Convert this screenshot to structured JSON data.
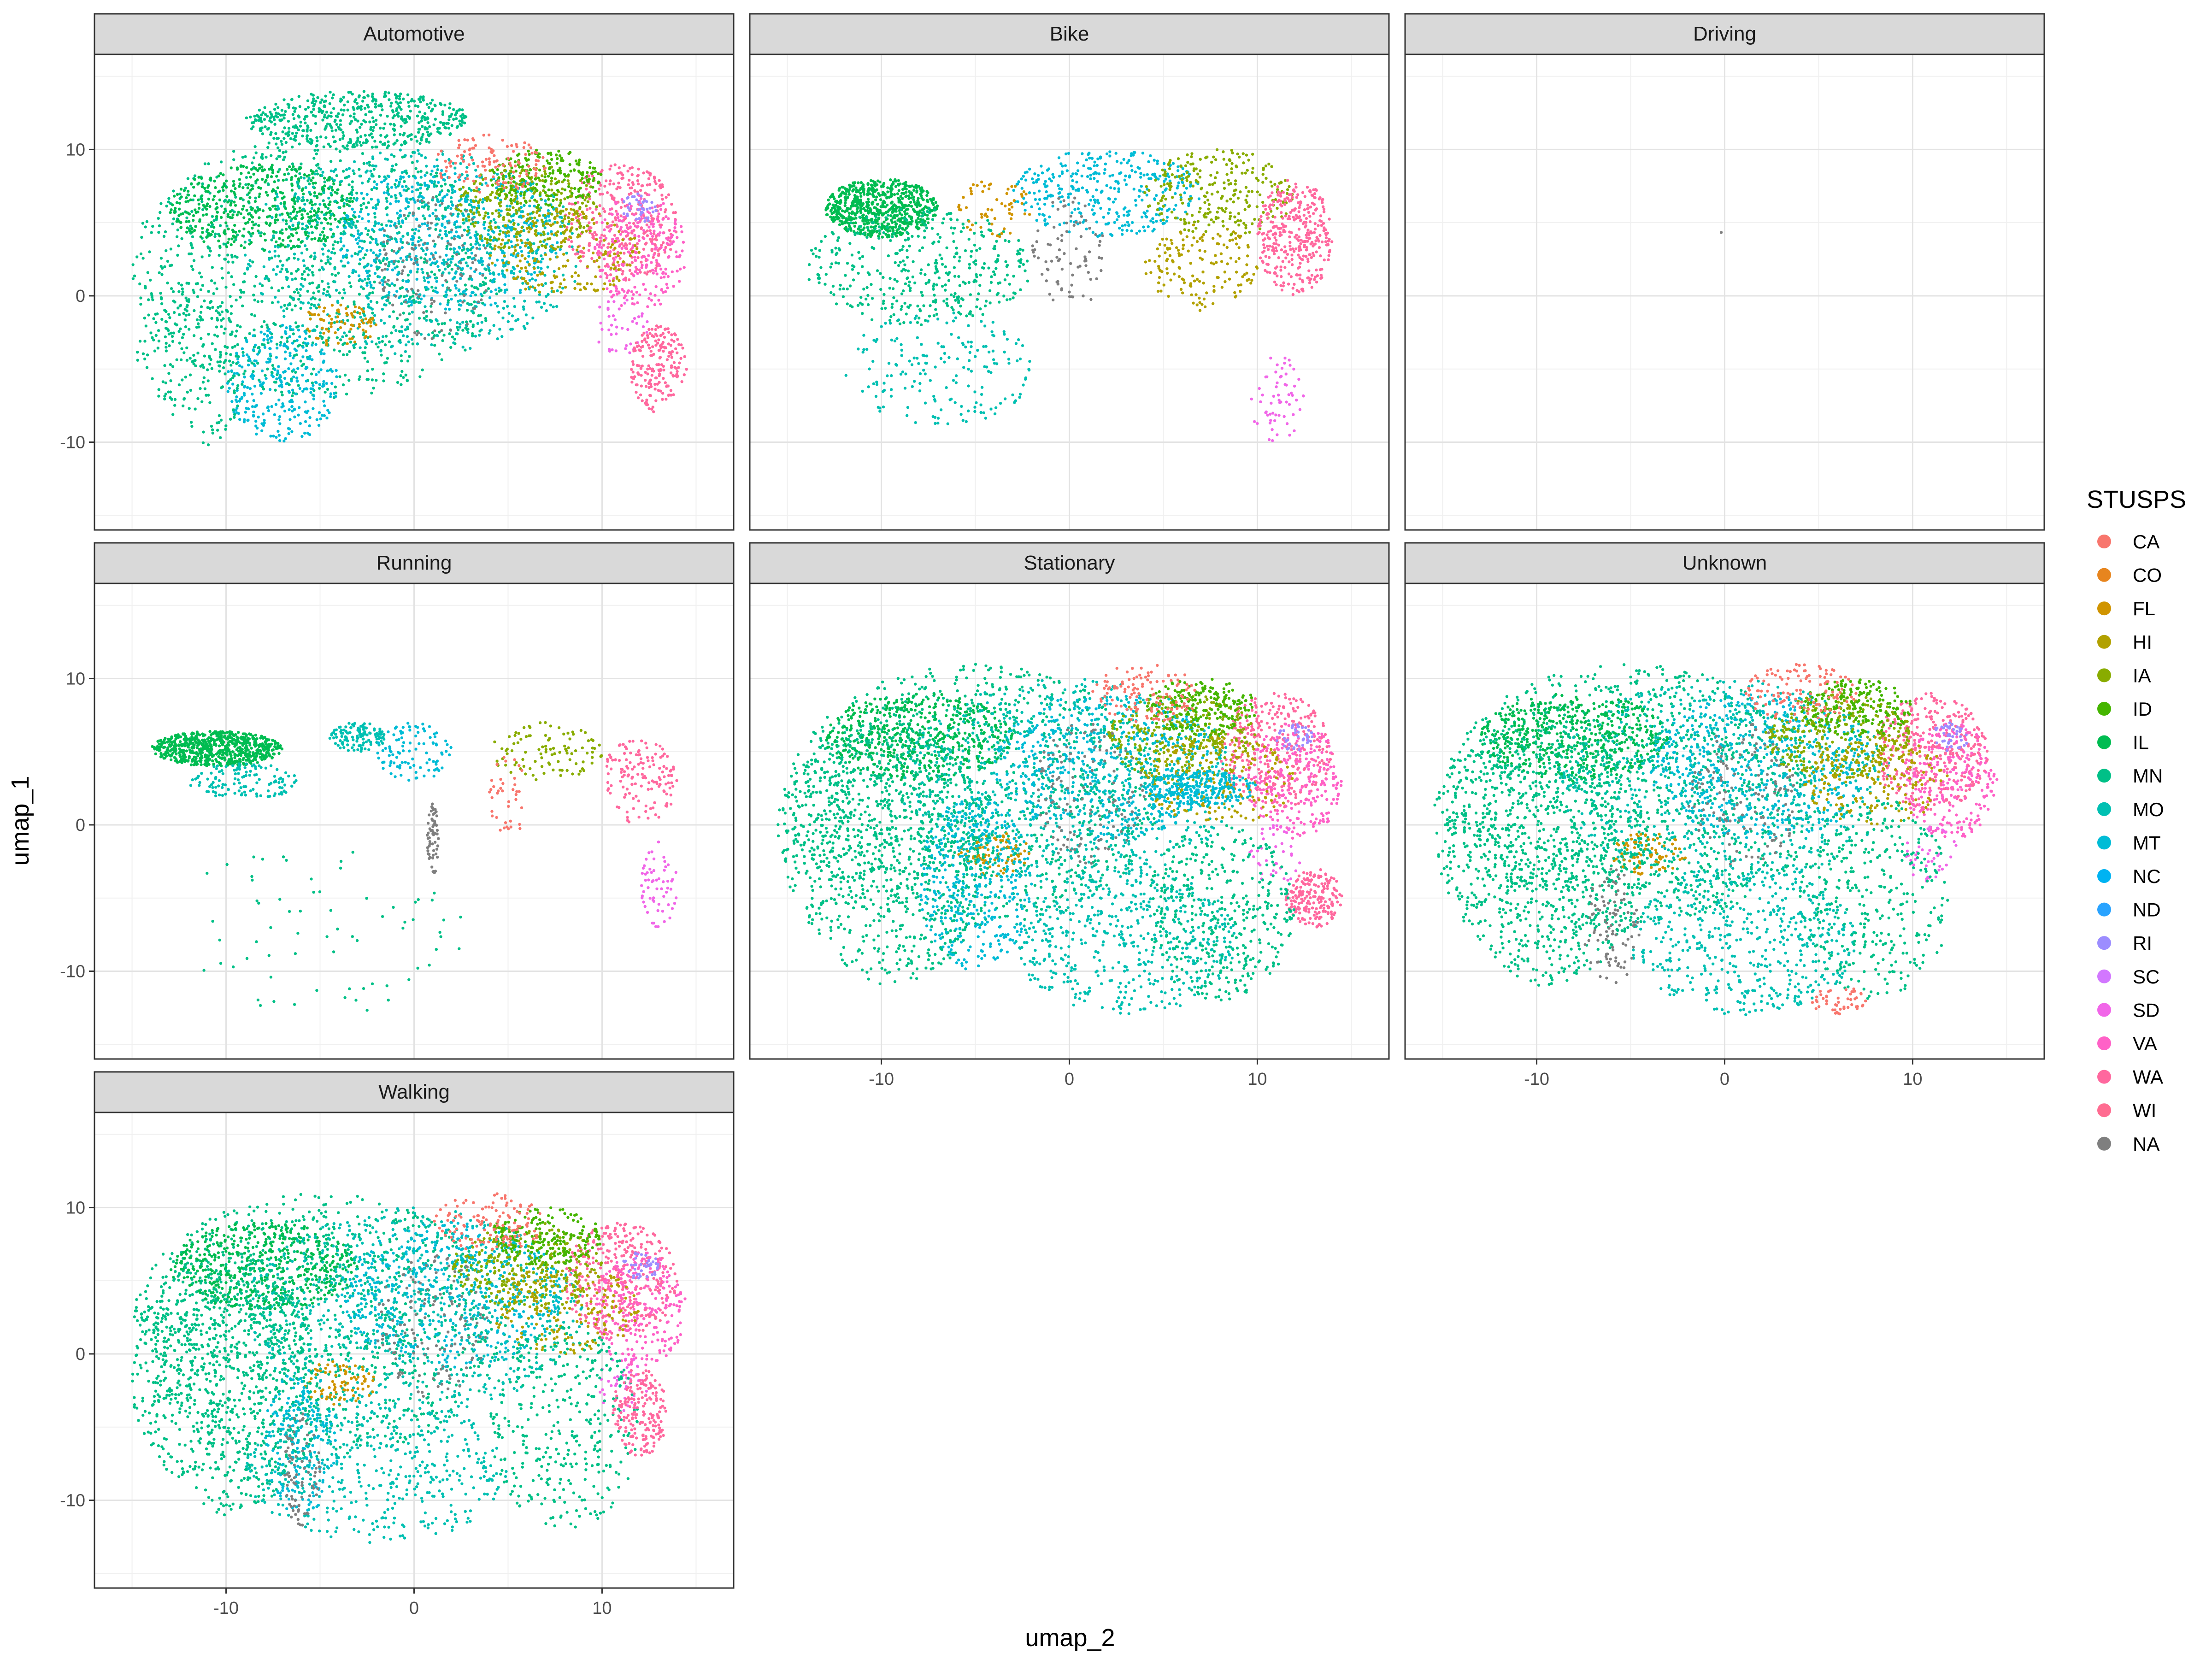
{
  "chart_data": {
    "type": "scatter",
    "xlabel": "umap_2",
    "ylabel": "umap_1",
    "xlim": [
      -17,
      17
    ],
    "ylim": [
      -16,
      16.5
    ],
    "x_ticks": [
      -10,
      0,
      10
    ],
    "y_ticks": [
      -10,
      0,
      10
    ],
    "x_tick_labels": [
      "-10",
      "0",
      "10"
    ],
    "y_tick_labels": [
      "-10",
      "0",
      "10"
    ],
    "grid": true,
    "facets": [
      "Automotive",
      "Bike",
      "Driving",
      "Running",
      "Stationary",
      "Unknown",
      "Walking"
    ],
    "facet_columns": 3,
    "legend": {
      "title": "STUSPS",
      "placement": "right",
      "items": [
        {
          "label": "CA",
          "color": "#F8766D"
        },
        {
          "label": "CO",
          "color": "#E7851E"
        },
        {
          "label": "FL",
          "color": "#D09400"
        },
        {
          "label": "HI",
          "color": "#B2A100"
        },
        {
          "label": "IA",
          "color": "#89AC00"
        },
        {
          "label": "ID",
          "color": "#45B500"
        },
        {
          "label": "IL",
          "color": "#00BC51"
        },
        {
          "label": "MN",
          "color": "#00C087"
        },
        {
          "label": "MO",
          "color": "#00C0B2"
        },
        {
          "label": "MT",
          "color": "#00BCD6"
        },
        {
          "label": "NC",
          "color": "#00B3F2"
        },
        {
          "label": "ND",
          "color": "#29A3FF"
        },
        {
          "label": "RI",
          "color": "#9C8DFF"
        },
        {
          "label": "SC",
          "color": "#D277FF"
        },
        {
          "label": "SD",
          "color": "#F166E8"
        },
        {
          "label": "VA",
          "color": "#FF61C7"
        },
        {
          "label": "WA",
          "color": "#FF689E"
        },
        {
          "label": "WI",
          "color": "#FF6C91"
        },
        {
          "label": "NA",
          "color": "#7F7F7F"
        }
      ]
    }
  }
}
